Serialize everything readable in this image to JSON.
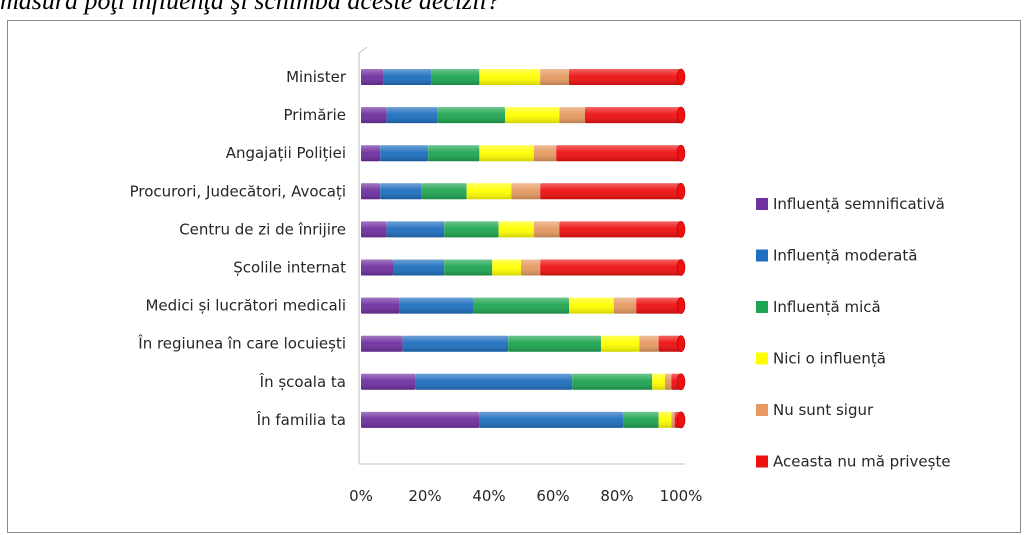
{
  "header": {
    "text": "măsură poţi influenţa şi schimba aceste decizii?"
  },
  "chart_data": {
    "type": "bar",
    "orientation": "horizontal",
    "stacked": "percent",
    "categories": [
      "Minister",
      "Primărie",
      "Angajații Poliției",
      "Procurori, Judecători, Avocați",
      "Centru de zi de înrijire",
      "Școlile internat",
      "Medici și lucrători medicali",
      "În regiunea în care locuiești",
      "În școala ta",
      "În familia ta"
    ],
    "series": [
      {
        "name": "Influență semnificativă",
        "color": "#7030a0",
        "values": [
          7,
          8,
          6,
          6,
          8,
          10,
          12,
          13,
          17,
          37
        ]
      },
      {
        "name": "Influență moderată",
        "color": "#1f6fbf",
        "values": [
          15,
          16,
          15,
          13,
          18,
          16,
          23,
          33,
          49,
          45
        ]
      },
      {
        "name": "Influență mică",
        "color": "#1fa552",
        "values": [
          15,
          21,
          16,
          14,
          17,
          15,
          30,
          29,
          25,
          11
        ]
      },
      {
        "name": "Nici o influență",
        "color": "#ffff00",
        "values": [
          19,
          17,
          17,
          14,
          11,
          9,
          14,
          12,
          4,
          4
        ]
      },
      {
        "name": "Nu sunt sigur",
        "color": "#e69a62",
        "values": [
          9,
          8,
          7,
          9,
          8,
          6,
          7,
          6,
          2,
          1
        ]
      },
      {
        "name": "Aceasta nu mă privește",
        "color": "#ee1111",
        "values": [
          35,
          30,
          39,
          44,
          38,
          44,
          14,
          7,
          3,
          2
        ]
      }
    ],
    "xlim": [
      0,
      100
    ],
    "xticks": [
      "0%",
      "20%",
      "40%",
      "60%",
      "80%",
      "100%"
    ],
    "grid": false,
    "legend_position": "right"
  }
}
